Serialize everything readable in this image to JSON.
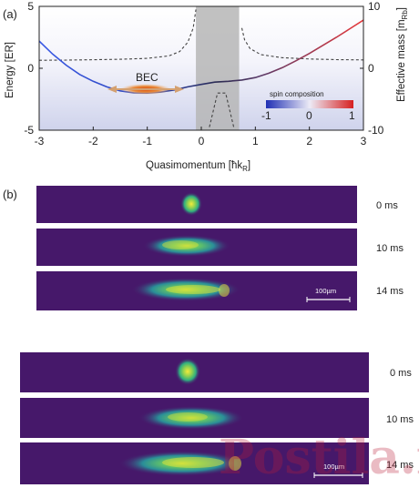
{
  "panel_a": {
    "label": "(a)",
    "chart_data": {
      "type": "line",
      "xlabel": "Quasimomentum [ħk",
      "xlabel_sub": "R",
      "xlabel_end": "]",
      "ylabel": "Energy [ER]",
      "y2label": "Effective mass [m",
      "y2label_sub": "Rb",
      "y2label_end": "]",
      "xlim": [
        -3,
        3
      ],
      "ylim": [
        -5,
        5
      ],
      "y2lim": [
        -10,
        10
      ],
      "x_ticks": [
        "-3",
        "-2",
        "-1",
        "0",
        "1",
        "2",
        "3"
      ],
      "y_ticks": [
        "5",
        "0",
        "-5"
      ],
      "y2_ticks": [
        "10",
        "0",
        "-10"
      ],
      "grid": false,
      "shaded_region": [
        -0.1,
        0.7
      ],
      "series": [
        {
          "kind": "dispersion",
          "x": [
            -3,
            -2.75,
            -2.5,
            -2.25,
            -2,
            -1.75,
            -1.5,
            -1.25,
            -1,
            -0.75,
            -0.5,
            -0.25,
            0,
            0.25,
            0.5,
            0.75,
            1,
            1.25,
            1.5,
            1.75,
            2,
            2.25,
            2.5,
            2.75,
            3
          ],
          "y": [
            2.2,
            1.15,
            0.25,
            -0.5,
            -1.05,
            -1.5,
            -1.82,
            -1.98,
            -2.0,
            -1.92,
            -1.75,
            -1.5,
            -1.3,
            -1.12,
            -1.05,
            -0.95,
            -0.75,
            -0.4,
            0.05,
            0.6,
            1.2,
            1.85,
            2.5,
            3.2,
            3.9
          ]
        },
        {
          "kind": "effective_mass_dashed",
          "x": [
            -3,
            -2.5,
            -2,
            -1.5,
            -1,
            -0.6,
            -0.4,
            -0.25,
            -0.15,
            -0.1,
            0.15,
            0.3,
            0.45,
            0.6,
            0.75,
            0.8,
            0.9,
            1.1,
            1.5,
            2,
            2.5,
            3
          ],
          "y": [
            1.3,
            1.32,
            1.38,
            1.45,
            1.6,
            2.0,
            2.7,
            4.2,
            6.5,
            9.5,
            -9.5,
            -4.0,
            -4.0,
            -9.5,
            6.5,
            4.6,
            3.2,
            2.2,
            1.7,
            1.5,
            1.4,
            1.35
          ]
        }
      ],
      "legend": {
        "title": "spin composition",
        "ticks": [
          "-1",
          "0",
          "1"
        ],
        "colors": [
          "#1f2fb4",
          "#e8e8f4",
          "#d62020"
        ],
        "position": "bottom-right"
      },
      "annotation": "BEC"
    }
  },
  "panel_b": {
    "label": "(b)",
    "frames": [
      {
        "time": "0 ms"
      },
      {
        "time": "10 ms"
      },
      {
        "time": "14 ms"
      }
    ],
    "scale_bar": "100µm"
  },
  "panel_c": {
    "frames": [
      {
        "time": "0 ms"
      },
      {
        "time": "10 ms"
      },
      {
        "time": "14 ms"
      }
    ],
    "scale_bar": "100µm"
  },
  "watermark": "Postila.ru",
  "colors": {
    "absorption_bg": "#46186a",
    "cloud_core": "#f0e63a",
    "cloud_mid": "#33b27a",
    "cloud_edge": "#2c7fa2",
    "dispersion_left": "#2c50d8",
    "dispersion_right": "#e13a3a",
    "shade": "#b6b6b6"
  }
}
